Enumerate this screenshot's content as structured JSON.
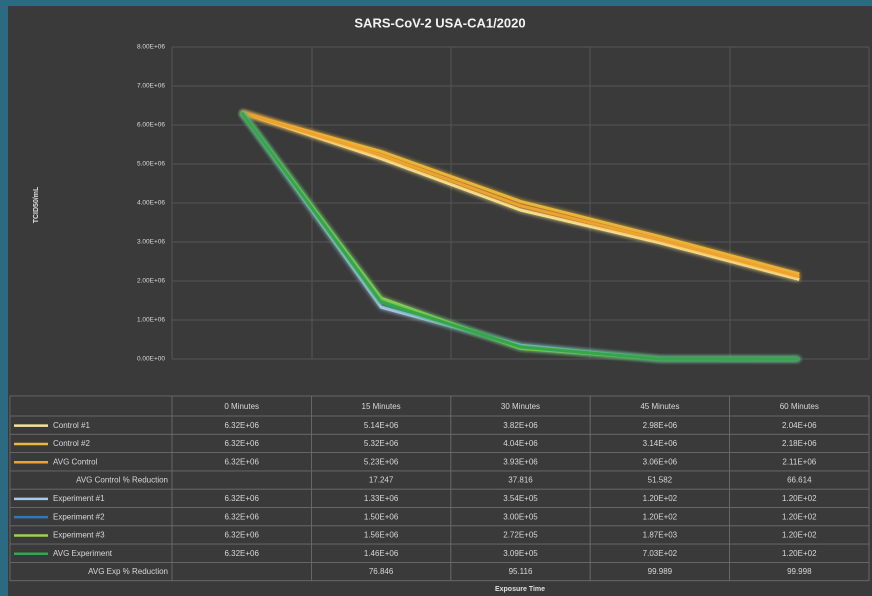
{
  "chart_data": {
    "type": "line",
    "title": "SARS-CoV-2 USA-CA1/2020",
    "y_label": "TCID50/mL",
    "x_label": "Exposure Time",
    "categories": [
      "0 Minutes",
      "15 Minutes",
      "30 Minutes",
      "45 Minutes",
      "60 Minutes"
    ],
    "ylim": [
      0,
      8000000
    ],
    "yticks": [
      {
        "value": 0,
        "label": "0.00E+00"
      },
      {
        "value": 1000000,
        "label": "1.00E+06"
      },
      {
        "value": 2000000,
        "label": "2.00E+06"
      },
      {
        "value": 3000000,
        "label": "3.00E+06"
      },
      {
        "value": 4000000,
        "label": "4.00E+06"
      },
      {
        "value": 5000000,
        "label": "5.00E+06"
      },
      {
        "value": 6000000,
        "label": "6.00E+06"
      },
      {
        "value": 7000000,
        "label": "7.00E+06"
      },
      {
        "value": 8000000,
        "label": "8.00E+06"
      }
    ],
    "grid": true,
    "series": [
      {
        "name": "Control #1",
        "color": "#f6e394",
        "values": [
          6320000,
          5140000,
          3820000,
          2980000,
          2040000
        ],
        "value_labels": [
          "6.32E+06",
          "5.14E+06",
          "3.82E+06",
          "2.98E+06",
          "2.04E+06"
        ]
      },
      {
        "name": "Control #2",
        "color": "#e9b83c",
        "values": [
          6320000,
          5320000,
          4040000,
          3140000,
          2180000
        ],
        "value_labels": [
          "6.32E+06",
          "5.32E+06",
          "4.04E+06",
          "3.14E+06",
          "2.18E+06"
        ]
      },
      {
        "name": "AVG Control",
        "color": "#f0a22e",
        "values": [
          6320000,
          5230000,
          3930000,
          3060000,
          2110000
        ],
        "value_labels": [
          "6.32E+06",
          "5.23E+06",
          "3.93E+06",
          "3.06E+06",
          "2.11E+06"
        ]
      },
      {
        "name": "Experiment #1",
        "color": "#a9c9ea",
        "values": [
          6320000,
          1330000,
          354000,
          120,
          120
        ],
        "value_labels": [
          "6.32E+06",
          "1.33E+06",
          "3.54E+05",
          "1.20E+02",
          "1.20E+02"
        ]
      },
      {
        "name": "Experiment #2",
        "color": "#2f78c0",
        "values": [
          6320000,
          1500000,
          300000,
          120,
          120
        ],
        "value_labels": [
          "6.32E+06",
          "1.50E+06",
          "3.00E+05",
          "1.20E+02",
          "1.20E+02"
        ]
      },
      {
        "name": "Experiment #3",
        "color": "#98d154",
        "values": [
          6320000,
          1560000,
          272000,
          1870,
          120
        ],
        "value_labels": [
          "6.32E+06",
          "1.56E+06",
          "2.72E+05",
          "1.87E+03",
          "1.20E+02"
        ]
      },
      {
        "name": "AVG Experiment",
        "color": "#33a74a",
        "values": [
          6320000,
          1460000,
          309000,
          703,
          120
        ],
        "value_labels": [
          "6.32E+06",
          "1.46E+06",
          "3.09E+05",
          "7.03E+02",
          "1.20E+02"
        ]
      }
    ],
    "reductions": [
      {
        "name": "AVG Control % Reduction",
        "values": [
          null,
          17.247,
          37.816,
          51.582,
          66.614
        ]
      },
      {
        "name": "AVG Exp % Reduction",
        "values": [
          null,
          76.846,
          95.116,
          99.989,
          99.998
        ]
      }
    ]
  }
}
